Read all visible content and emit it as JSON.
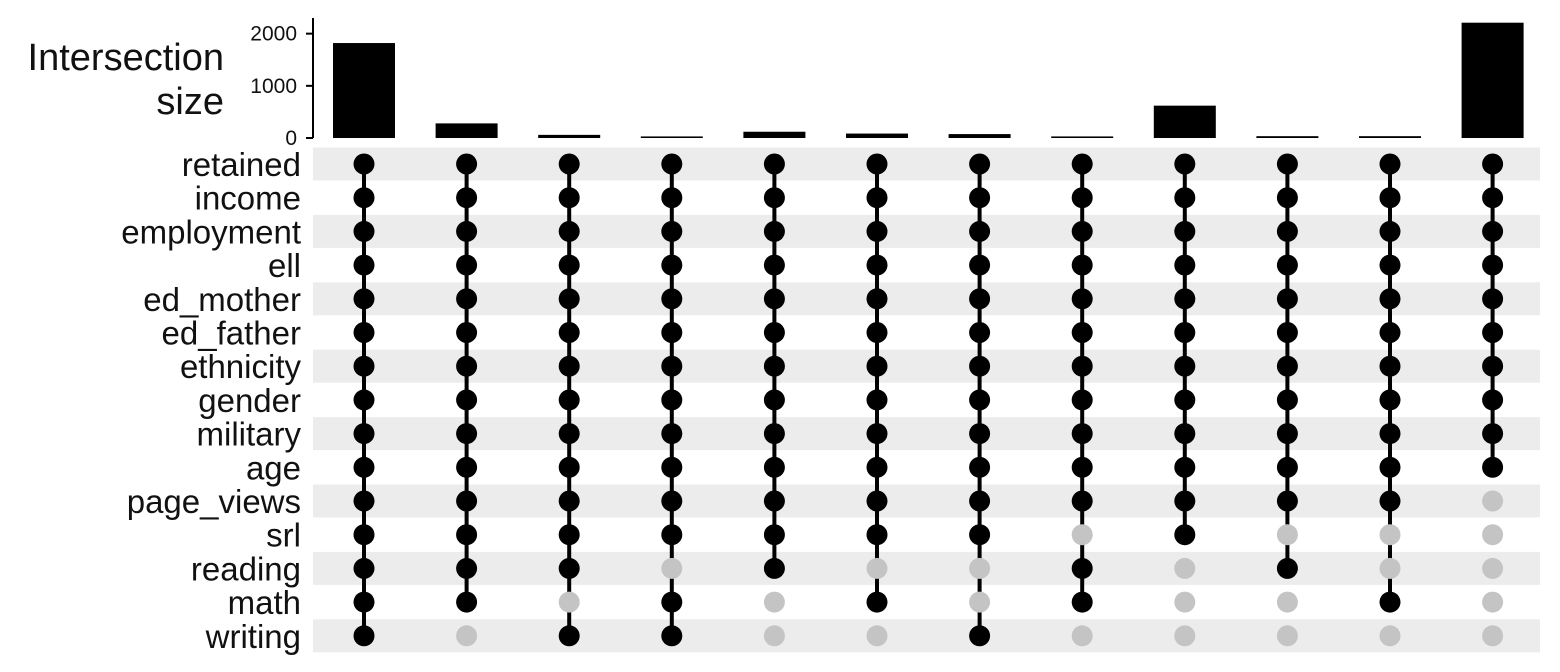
{
  "chart_data": {
    "type": "bar",
    "ylabel": [
      "Intersection",
      "size"
    ],
    "y_ticks": [
      0,
      1000,
      2000
    ],
    "ylim": [
      0,
      2300
    ],
    "sets": [
      "retained",
      "income",
      "employment",
      "ell",
      "ed_mother",
      "ed_father",
      "ethnicity",
      "gender",
      "military",
      "age",
      "page_views",
      "srl",
      "reading",
      "math",
      "writing"
    ],
    "values": [
      1820,
      280,
      60,
      30,
      120,
      85,
      75,
      30,
      620,
      35,
      35,
      2210
    ],
    "membership": [
      [
        1,
        1,
        1,
        1,
        1,
        1,
        1,
        1,
        1,
        1,
        1,
        1,
        1,
        1,
        1
      ],
      [
        1,
        1,
        1,
        1,
        1,
        1,
        1,
        1,
        1,
        1,
        1,
        1,
        1,
        1,
        0
      ],
      [
        1,
        1,
        1,
        1,
        1,
        1,
        1,
        1,
        1,
        1,
        1,
        1,
        1,
        0,
        1
      ],
      [
        1,
        1,
        1,
        1,
        1,
        1,
        1,
        1,
        1,
        1,
        1,
        1,
        0,
        1,
        1
      ],
      [
        1,
        1,
        1,
        1,
        1,
        1,
        1,
        1,
        1,
        1,
        1,
        1,
        1,
        0,
        0
      ],
      [
        1,
        1,
        1,
        1,
        1,
        1,
        1,
        1,
        1,
        1,
        1,
        1,
        0,
        1,
        0
      ],
      [
        1,
        1,
        1,
        1,
        1,
        1,
        1,
        1,
        1,
        1,
        1,
        1,
        0,
        0,
        1
      ],
      [
        1,
        1,
        1,
        1,
        1,
        1,
        1,
        1,
        1,
        1,
        1,
        0,
        1,
        1,
        0
      ],
      [
        1,
        1,
        1,
        1,
        1,
        1,
        1,
        1,
        1,
        1,
        1,
        1,
        0,
        0,
        0
      ],
      [
        1,
        1,
        1,
        1,
        1,
        1,
        1,
        1,
        1,
        1,
        1,
        0,
        1,
        0,
        0
      ],
      [
        1,
        1,
        1,
        1,
        1,
        1,
        1,
        1,
        1,
        1,
        1,
        0,
        0,
        1,
        0
      ],
      [
        1,
        1,
        1,
        1,
        1,
        1,
        1,
        1,
        1,
        1,
        0,
        0,
        0,
        0,
        0
      ]
    ],
    "colors": {
      "bar": "#000000",
      "dot_on": "#000000",
      "dot_off": "#c4c4c4",
      "stripe": "#ececec"
    },
    "grid": false
  }
}
